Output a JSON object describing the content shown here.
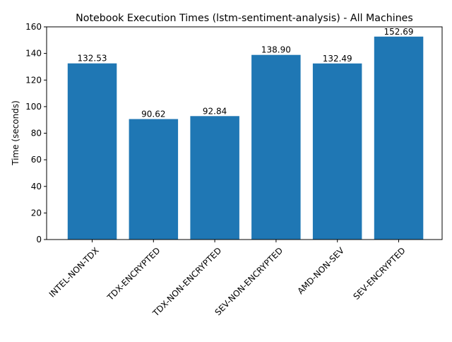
{
  "chart_data": {
    "type": "bar",
    "title": "Notebook Execution Times (lstm-sentiment-analysis) - All Machines",
    "xlabel": "",
    "ylabel": "Time (seconds)",
    "categories": [
      "INTEL-NON-TDX",
      "TDX-ENCRYPTED",
      "TDX-NON-ENCRYPTED",
      "SEV-NON-ENCRYPTED",
      "AMD-NON-SEV",
      "SEV-ENCRYPTED"
    ],
    "values": [
      132.53,
      90.62,
      92.84,
      138.9,
      132.49,
      152.69
    ],
    "value_labels": [
      "132.53",
      "90.62",
      "92.84",
      "138.90",
      "132.49",
      "152.69"
    ],
    "ylim": [
      0,
      160
    ],
    "yticks": [
      0,
      20,
      40,
      60,
      80,
      100,
      120,
      140,
      160
    ],
    "ytick_labels": [
      "0",
      "20",
      "40",
      "60",
      "80",
      "100",
      "120",
      "140",
      "160"
    ],
    "bar_color": "#1f77b4",
    "grid": false,
    "legend": "none"
  }
}
